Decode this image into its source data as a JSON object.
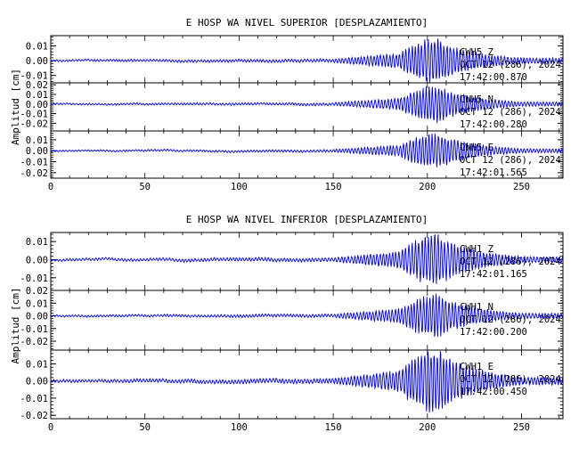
{
  "chart_data": [
    {
      "type": "line",
      "title": "E HOSP WA NIVEL SUPERIOR [DESPLAZAMIENTO]",
      "ylabel": "Amplitud [cm]",
      "xlim": [
        0,
        272
      ],
      "xticks": [
        "0",
        "50",
        "100",
        "150",
        "200",
        "250"
      ],
      "color": "#0000ff",
      "traces": [
        {
          "station": "CWH5",
          "component": "Z",
          "date": "OCT 12 (286), 2024",
          "time": "17:42:00.870",
          "ylim": [
            -0.015,
            0.017
          ],
          "yticks": [
            "0.01",
            "0.00",
            "-0.01"
          ],
          "yvals": [
            0.01,
            0.0,
            -0.01
          ],
          "peak": 0.016,
          "seed": 11
        },
        {
          "station": "CWH5",
          "component": "N",
          "date": "OCT 12 (286), 2024",
          "time": "17:42:00.280",
          "ylim": [
            -0.028,
            0.022
          ],
          "yticks": [
            "0.02",
            "0.01",
            "0.00",
            "-0.01",
            "-0.02"
          ],
          "yvals": [
            0.02,
            0.01,
            0.0,
            -0.01,
            -0.02
          ],
          "peak": 0.02,
          "seed": 23
        },
        {
          "station": "CWH5",
          "component": "E",
          "date": "OCT 12 (286), 2024",
          "time": "17:42:01.565",
          "ylim": [
            -0.025,
            0.018
          ],
          "yticks": [
            "0.01",
            "0.00",
            "-0.01",
            "-0.02"
          ],
          "yvals": [
            0.01,
            0.0,
            -0.01,
            -0.02
          ],
          "peak": 0.017,
          "seed": 37
        }
      ]
    },
    {
      "type": "line",
      "title": "E HOSP WA NIVEL INFERIOR [DESPLAZAMIENTO]",
      "ylabel": "Amplitud [cm]",
      "xlim": [
        0,
        272
      ],
      "xticks": [
        "0",
        "50",
        "100",
        "150",
        "200",
        "250"
      ],
      "color": "#0000ff",
      "traces": [
        {
          "station": "CWH1",
          "component": "Z",
          "date": "OCT 12 (286), 2024",
          "time": "17:42:01.165",
          "ylim": [
            -0.017,
            0.015
          ],
          "yticks": [
            "0.01",
            "0.00",
            "-0.01"
          ],
          "yvals": [
            0.01,
            0.0,
            -0.01
          ],
          "peak": 0.015,
          "seed": 53
        },
        {
          "station": "CWH1",
          "component": "N",
          "date": "OCT 12 (286), 2024",
          "time": "17:42:00.200",
          "ylim": [
            -0.027,
            0.02
          ],
          "yticks": [
            "0.02",
            "0.01",
            "0.00",
            "-0.01",
            "-0.02"
          ],
          "yvals": [
            0.02,
            0.01,
            0.0,
            -0.01,
            -0.02
          ],
          "peak": 0.018,
          "seed": 71
        },
        {
          "station": "CWH1",
          "component": "E",
          "date": "OCT 12 (286), 2024",
          "time": "17:42:00.450",
          "ylim": [
            -0.022,
            0.018
          ],
          "yticks": [
            "0.01",
            "0.00",
            "-0.01",
            "-0.02"
          ],
          "yvals": [
            0.01,
            0.0,
            -0.01,
            -0.02
          ],
          "peak": 0.02,
          "seed": 89
        }
      ]
    }
  ]
}
